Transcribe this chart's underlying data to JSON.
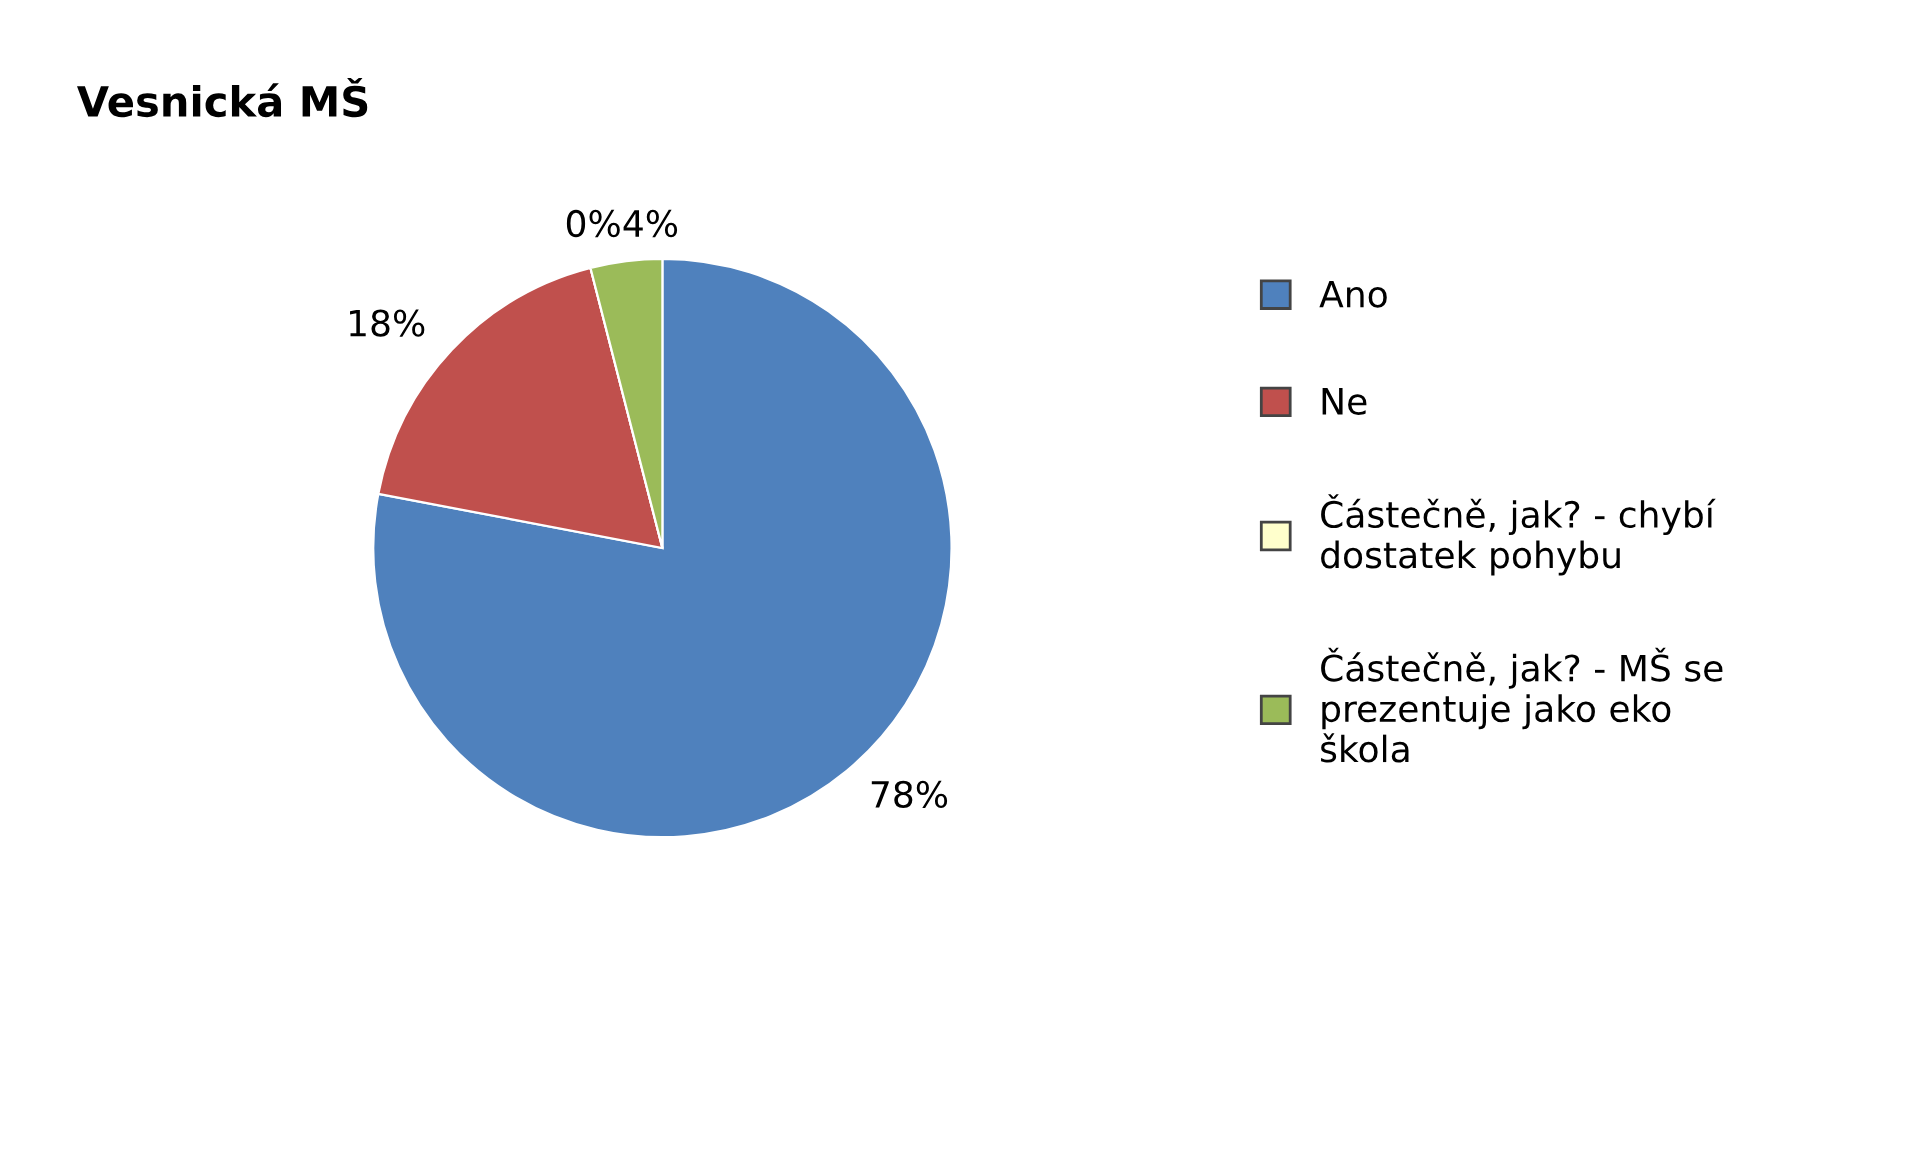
{
  "chart_data": {
    "type": "pie",
    "title": "Vesnická MŠ",
    "categories": [
      "Ano",
      "Ne",
      "Částečně, jak? - chybí dostatek pohybu",
      "Částečně, jak? - MŠ se prezentuje jako eko škola"
    ],
    "values": [
      78,
      18,
      0,
      4
    ],
    "colors": [
      "#4f81bd",
      "#c0504d",
      "#ffffcc",
      "#9bbb59"
    ],
    "value_labels": [
      "78%",
      "18%",
      "0%",
      "4%"
    ],
    "legend": "right"
  }
}
